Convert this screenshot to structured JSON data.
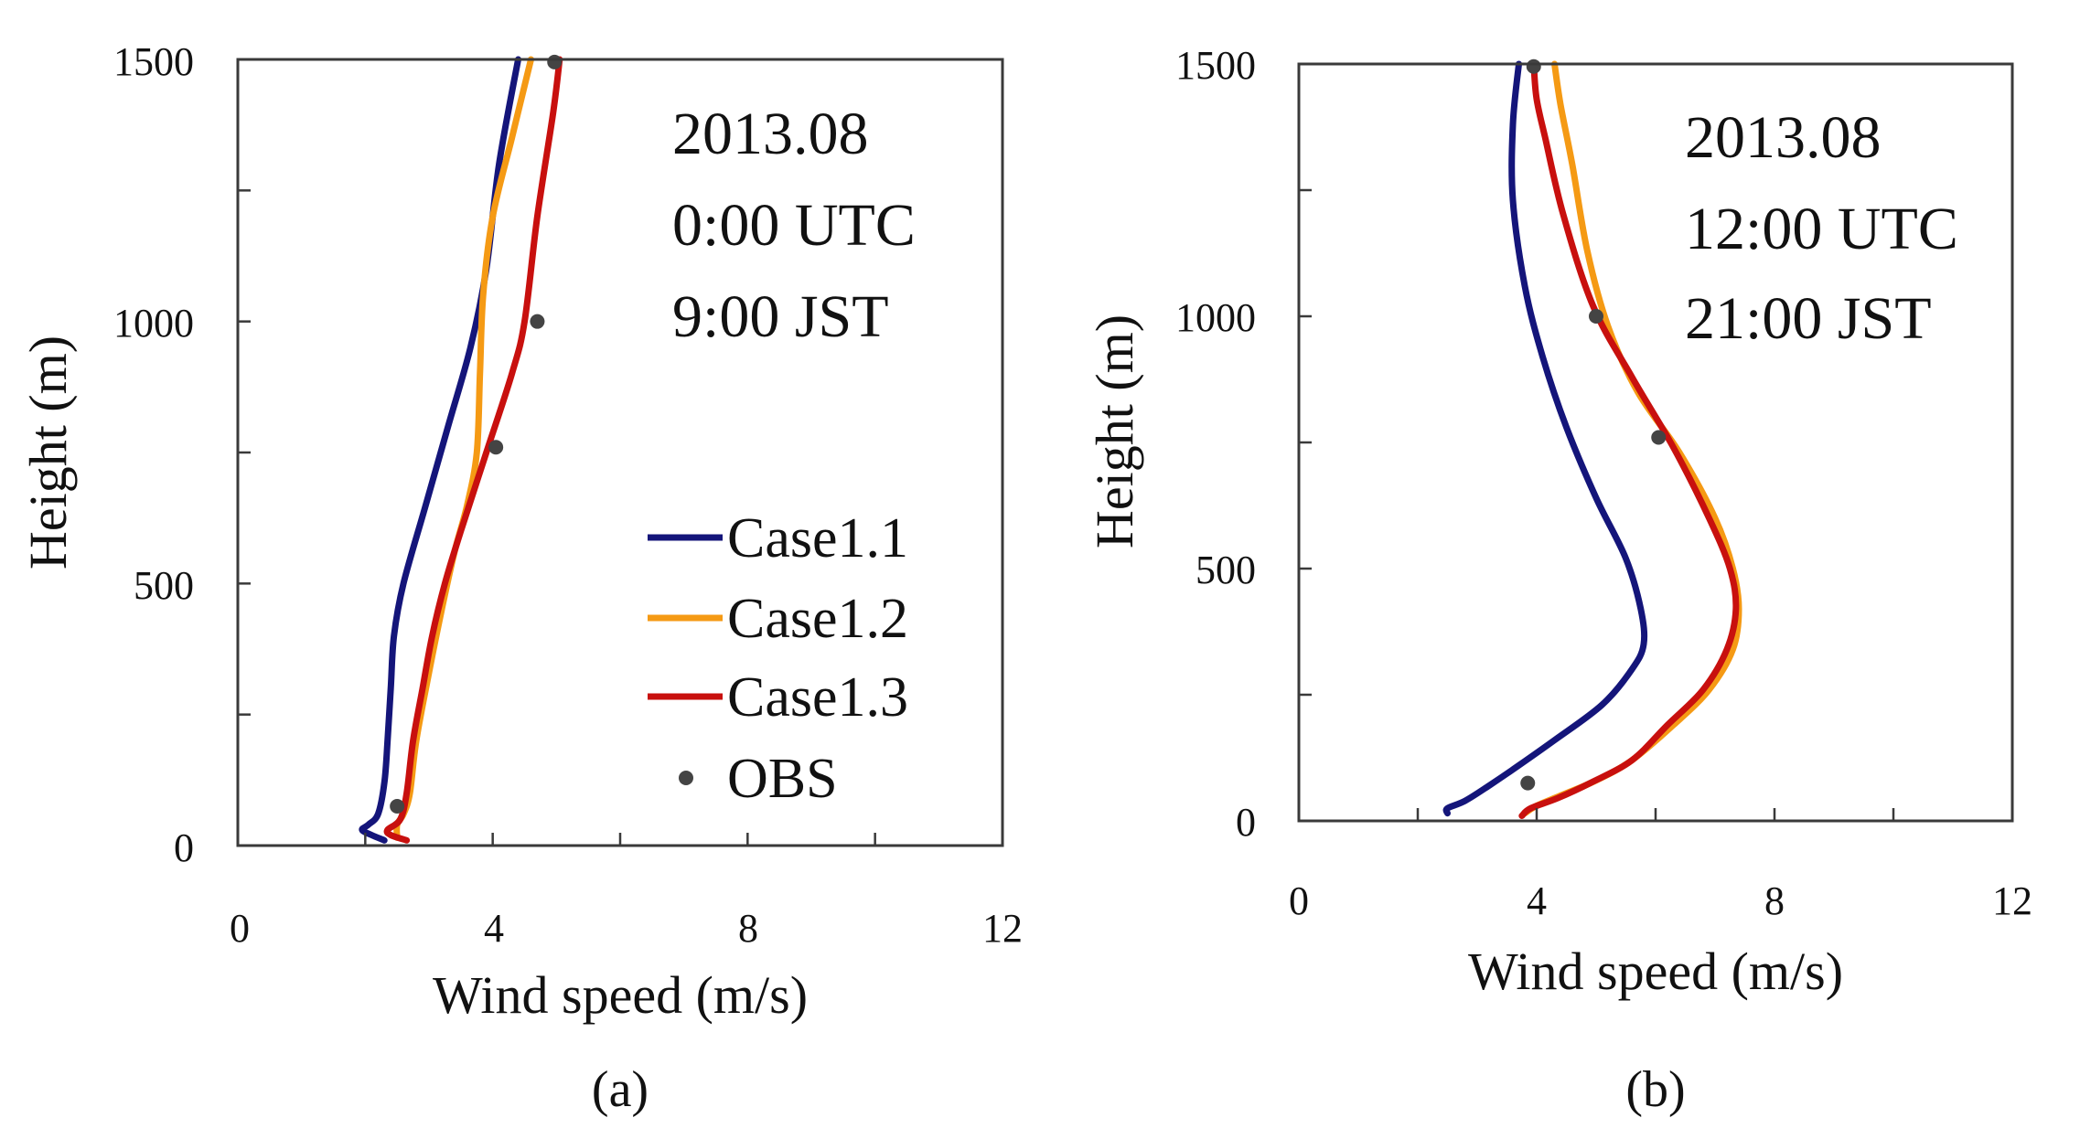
{
  "chart_data": [
    {
      "type": "line",
      "panel_label": "(a)",
      "xlabel": "Wind speed  (m/s)",
      "ylabel": "Height (m)",
      "xlim": [
        0,
        12
      ],
      "ylim": [
        0,
        1500
      ],
      "xticks": [
        0,
        4,
        8,
        12
      ],
      "xminor": [
        2,
        6,
        10
      ],
      "yticks": [
        0,
        500,
        1000,
        1500
      ],
      "yminor": [
        250,
        750,
        1250
      ],
      "grid": false,
      "annotation": [
        "2013.08",
        "0:00 UTC",
        "9:00 JST"
      ],
      "legend": {
        "placement": "bottom-right",
        "entries": [
          {
            "name": "Case1.1",
            "color": "#14157a",
            "kind": "line"
          },
          {
            "name": "Case1.2",
            "color": "#f59a14",
            "kind": "line"
          },
          {
            "name": "Case1.3",
            "color": "#c8100e",
            "kind": "line"
          },
          {
            "name": "OBS",
            "color": "#444444",
            "kind": "marker"
          }
        ]
      },
      "series": [
        {
          "name": "Case1.1",
          "color": "#14157a",
          "points": [
            [
              2.3,
              10
            ],
            [
              2.1,
              20
            ],
            [
              1.95,
              30
            ],
            [
              2.05,
              40
            ],
            [
              2.2,
              60
            ],
            [
              2.3,
              120
            ],
            [
              2.35,
              200
            ],
            [
              2.4,
              300
            ],
            [
              2.45,
              400
            ],
            [
              2.6,
              500
            ],
            [
              2.95,
              650
            ],
            [
              3.3,
              800
            ],
            [
              3.65,
              950
            ],
            [
              3.9,
              1100
            ],
            [
              4.1,
              1300
            ],
            [
              4.4,
              1500
            ]
          ]
        },
        {
          "name": "Case1.2",
          "color": "#f59a14",
          "points": [
            [
              2.5,
              15
            ],
            [
              2.5,
              40
            ],
            [
              2.6,
              60
            ],
            [
              2.7,
              100
            ],
            [
              2.8,
              200
            ],
            [
              3.0,
              330
            ],
            [
              3.2,
              450
            ],
            [
              3.4,
              560
            ],
            [
              3.6,
              650
            ],
            [
              3.75,
              750
            ],
            [
              3.8,
              900
            ],
            [
              3.85,
              1050
            ],
            [
              4.0,
              1200
            ],
            [
              4.3,
              1350
            ],
            [
              4.6,
              1500
            ]
          ]
        },
        {
          "name": "Case1.3",
          "color": "#c8100e",
          "points": [
            [
              2.65,
              10
            ],
            [
              2.4,
              20
            ],
            [
              2.35,
              30
            ],
            [
              2.55,
              50
            ],
            [
              2.65,
              100
            ],
            [
              2.75,
              200
            ],
            [
              2.9,
              300
            ],
            [
              3.05,
              400
            ],
            [
              3.25,
              500
            ],
            [
              3.5,
              600
            ],
            [
              3.9,
              750
            ],
            [
              4.3,
              900
            ],
            [
              4.5,
              1000
            ],
            [
              4.7,
              1200
            ],
            [
              4.95,
              1400
            ],
            [
              5.05,
              1500
            ]
          ]
        }
      ],
      "obs": [
        [
          2.5,
          75
        ],
        [
          4.05,
          760
        ],
        [
          4.7,
          1000
        ],
        [
          4.97,
          1495
        ]
      ]
    },
    {
      "type": "line",
      "panel_label": "(b)",
      "xlabel": "Wind speed  (m/s)",
      "ylabel": "Height (m)",
      "xlim": [
        0,
        12
      ],
      "ylim": [
        0,
        1500
      ],
      "xticks": [
        0,
        4,
        8,
        12
      ],
      "xminor": [
        2,
        6,
        10
      ],
      "yticks": [
        0,
        500,
        1000,
        1500
      ],
      "yminor": [
        250,
        750,
        1250
      ],
      "grid": false,
      "annotation": [
        "2013.08",
        "12:00 UTC",
        "21:00 JST"
      ],
      "series": [
        {
          "name": "Case1.1",
          "color": "#14157a",
          "points": [
            [
              2.5,
              15
            ],
            [
              2.5,
              25
            ],
            [
              2.8,
              40
            ],
            [
              3.2,
              70
            ],
            [
              3.7,
              110
            ],
            [
              4.3,
              160
            ],
            [
              5.1,
              230
            ],
            [
              5.6,
              300
            ],
            [
              5.8,
              350
            ],
            [
              5.75,
              420
            ],
            [
              5.5,
              520
            ],
            [
              5.0,
              640
            ],
            [
              4.5,
              780
            ],
            [
              4.1,
              920
            ],
            [
              3.8,
              1060
            ],
            [
              3.6,
              1230
            ],
            [
              3.6,
              1380
            ],
            [
              3.7,
              1500
            ]
          ]
        },
        {
          "name": "Case1.2",
          "color": "#f59a14",
          "points": [
            [
              3.8,
              15
            ],
            [
              4.0,
              30
            ],
            [
              4.4,
              50
            ],
            [
              5.0,
              80
            ],
            [
              5.6,
              120
            ],
            [
              6.3,
              190
            ],
            [
              6.9,
              260
            ],
            [
              7.3,
              340
            ],
            [
              7.4,
              420
            ],
            [
              7.3,
              500
            ],
            [
              7.0,
              600
            ],
            [
              6.4,
              730
            ],
            [
              5.7,
              850
            ],
            [
              5.2,
              980
            ],
            [
              4.85,
              1130
            ],
            [
              4.6,
              1300
            ],
            [
              4.4,
              1420
            ],
            [
              4.3,
              1500
            ]
          ]
        },
        {
          "name": "Case1.3",
          "color": "#c8100e",
          "points": [
            [
              3.75,
              10
            ],
            [
              3.9,
              25
            ],
            [
              4.35,
              45
            ],
            [
              4.9,
              75
            ],
            [
              5.6,
              120
            ],
            [
              6.2,
              190
            ],
            [
              6.8,
              260
            ],
            [
              7.2,
              340
            ],
            [
              7.35,
              420
            ],
            [
              7.25,
              500
            ],
            [
              6.9,
              600
            ],
            [
              6.3,
              740
            ],
            [
              5.6,
              880
            ],
            [
              4.95,
              1020
            ],
            [
              4.45,
              1200
            ],
            [
              4.15,
              1350
            ],
            [
              4.0,
              1430
            ],
            [
              3.95,
              1500
            ]
          ]
        }
      ],
      "obs": [
        [
          3.85,
          75
        ],
        [
          5.0,
          1000
        ],
        [
          6.05,
          760
        ],
        [
          3.95,
          1495
        ]
      ]
    }
  ]
}
